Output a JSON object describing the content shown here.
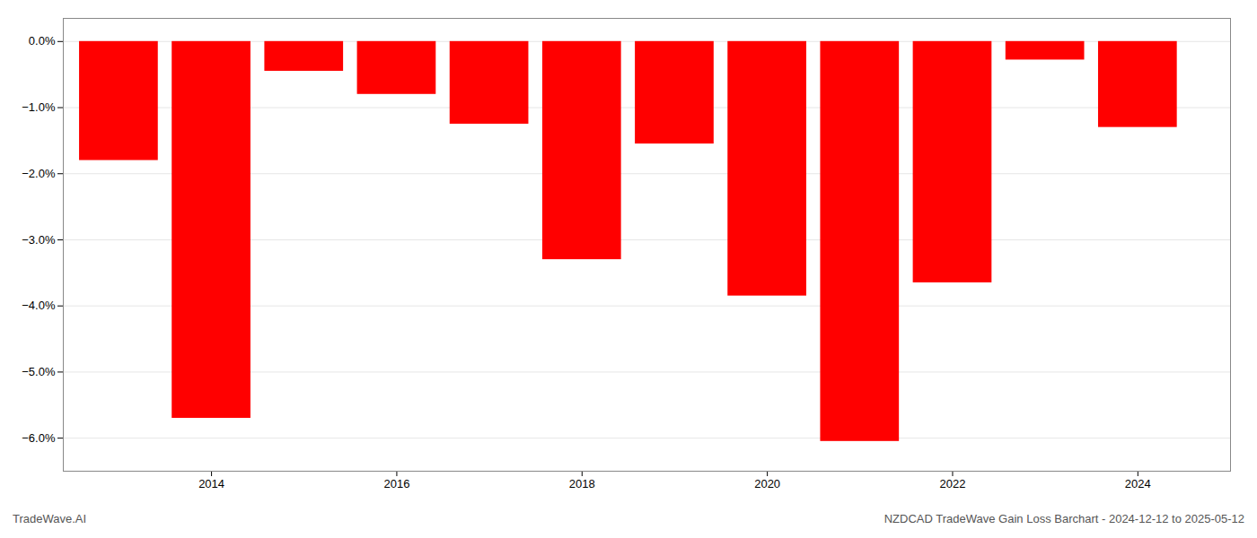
{
  "chart_data": {
    "type": "bar",
    "x": [
      2013,
      2014,
      2015,
      2016,
      2017,
      2018,
      2019,
      2020,
      2021,
      2022,
      2023,
      2024
    ],
    "values": [
      -1.8,
      -5.7,
      -0.45,
      -0.8,
      -1.25,
      -3.3,
      -1.55,
      -3.85,
      -6.05,
      -3.65,
      -0.28,
      -1.3
    ],
    "color": "#ff0000",
    "xlim": [
      2012.4,
      2025.0
    ],
    "xticks": [
      2014,
      2016,
      2018,
      2020,
      2022,
      2024
    ],
    "ylim": [
      -6.5,
      0.35
    ],
    "yticks": [
      {
        "value": 0.0,
        "label": "0.0%"
      },
      {
        "value": -1.0,
        "label": "−1.0%"
      },
      {
        "value": -2.0,
        "label": "−2.0%"
      },
      {
        "value": -3.0,
        "label": "−3.0%"
      },
      {
        "value": -4.0,
        "label": "−4.0%"
      },
      {
        "value": -5.0,
        "label": "−5.0%"
      },
      {
        "value": -6.0,
        "label": "−6.0%"
      }
    ],
    "grid": true,
    "annotations": [
      "TradeWave.AI",
      "NZDCAD TradeWave Gain Loss Barchart - 2024-12-12 to 2025-05-12"
    ]
  }
}
